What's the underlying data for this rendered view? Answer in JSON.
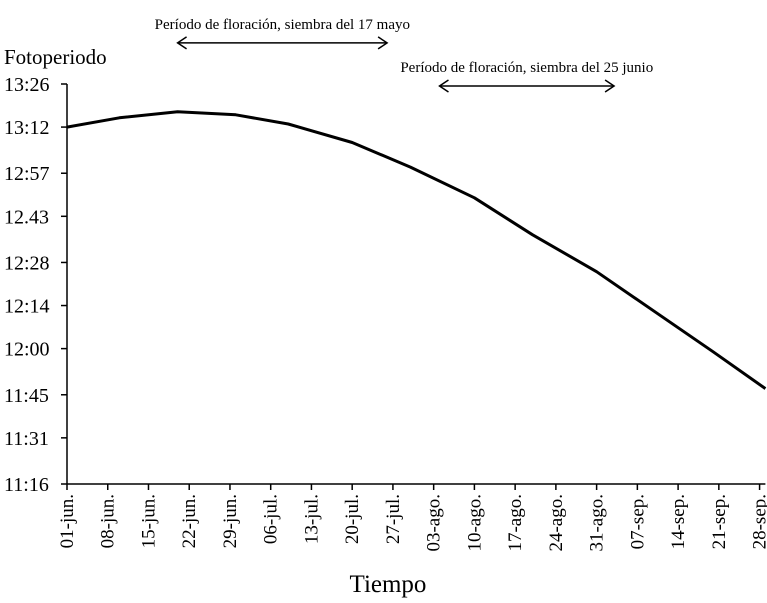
{
  "chart_data": {
    "type": "line",
    "title": "",
    "ylabel": "Fotoperiodo",
    "xlabel": "Tiempo",
    "y_tick_labels": [
      "13:26",
      "13:12",
      "12:57",
      "12.43",
      "12:28",
      "12:14",
      "12:00",
      "11:45",
      "11:31",
      "11:16"
    ],
    "y_tick_minutes": [
      806,
      792,
      777,
      763,
      748,
      734,
      720,
      705,
      691,
      676
    ],
    "ylim_minutes": [
      676,
      806
    ],
    "x_tick_labels": [
      "01-jun.",
      "08-jun.",
      "15-jun.",
      "22-jun.",
      "29-jun.",
      "06-jul.",
      "13-jul.",
      "20-jul.",
      "27-jul.",
      "03-ago.",
      "10-ago.",
      "17-ago.",
      "24-ago.",
      "31-ago.",
      "07-sep.",
      "14-sep.",
      "21-sep.",
      "28-sep."
    ],
    "x_tick_days": [
      0,
      7,
      14,
      21,
      28,
      35,
      42,
      49,
      56,
      63,
      70,
      77,
      84,
      91,
      98,
      105,
      112,
      119
    ],
    "xlim_days": [
      0,
      120
    ],
    "series": [
      {
        "x_days": [
          0,
          9,
          19,
          29,
          38,
          49,
          59,
          70,
          80,
          91,
          101,
          111,
          120
        ],
        "y_minutes": [
          792,
          795,
          797,
          796,
          793,
          787,
          779,
          769,
          757,
          745,
          732,
          719,
          707
        ]
      }
    ],
    "annotations": [
      {
        "text": "Período de floración, siembra del 17 mayo",
        "x_start_days": 19,
        "x_end_days": 55,
        "y_minutes": 820
      },
      {
        "text": "Período de floración, siembra del 25 junio",
        "x_start_days": 64,
        "x_end_days": 94,
        "y_minutes": 806
      }
    ]
  }
}
